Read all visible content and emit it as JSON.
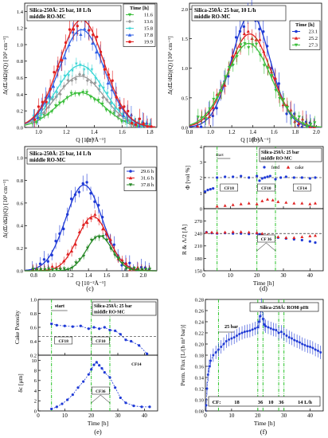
{
  "panel_labels": [
    "(a)",
    "(b)",
    "(c)",
    "(d)",
    "(e)",
    "(f)"
  ],
  "chart_data": [
    {
      "id": "a",
      "type": "scatter",
      "title": "Silica-250Å: 25 bar, 18 L/h",
      "subtitle": "middle RO-MC",
      "xlabel": "Q [10⁻²Å⁻¹]",
      "ylabel": "Δ(dΣ/dΩ)(Q) [10³ cm⁻¹]",
      "xlim": [
        0.9,
        1.85
      ],
      "ylim": [
        0.0,
        1.5
      ],
      "xticks": [
        "1.0",
        "1.2",
        "1.4",
        "1.6",
        "1.8"
      ],
      "yticks": [
        "0.0",
        "0.2",
        "0.4",
        "0.6",
        "0.8",
        "1.0",
        "1.2",
        "1.4"
      ],
      "legend_title": "Time [h]",
      "series": [
        {
          "name": "11.6",
          "color": "#3dbf3d",
          "marker": "triangle-down",
          "peak": 0.42,
          "center": 1.3,
          "width": 0.17
        },
        {
          "name": "13.6",
          "color": "#9a9a9a",
          "marker": "diamond",
          "peak": 0.62,
          "center": 1.3,
          "width": 0.17
        },
        {
          "name": "15.8",
          "color": "#3cd6d6",
          "marker": "star",
          "peak": 0.75,
          "center": 1.3,
          "width": 0.17
        },
        {
          "name": "17.8",
          "color": "#2e5fe6",
          "marker": "triangle-up",
          "peak": 1.18,
          "center": 1.31,
          "width": 0.16
        },
        {
          "name": "19.9",
          "color": "#e02020",
          "marker": "circle",
          "peak": 1.3,
          "center": 1.31,
          "width": 0.16
        }
      ]
    },
    {
      "id": "b",
      "type": "scatter",
      "title": "Silica-250Å: 25 bar, 10 L/h",
      "subtitle": "middle RO-MC",
      "xlabel": "Q [10⁻²Å⁻¹]",
      "ylabel": "Δ(dΣ/dΩ)(Q) [10³ cm⁻¹]",
      "xlim": [
        0.8,
        2.05
      ],
      "ylim": [
        0.0,
        2.1
      ],
      "xticks": [
        "0.8",
        "1.0",
        "1.2",
        "1.4",
        "1.6",
        "1.8",
        "2.0"
      ],
      "yticks": [
        "0.0",
        "0.5",
        "1.0",
        "1.5",
        "2.0"
      ],
      "legend_title": "Time [h]",
      "series": [
        {
          "name": "23.1",
          "color": "#1f3ad6",
          "marker": "circle",
          "peak": 1.92,
          "center": 1.38,
          "width": 0.18
        },
        {
          "name": "25.2",
          "color": "#e02020",
          "marker": "triangle-up",
          "peak": 1.58,
          "center": 1.37,
          "width": 0.2
        },
        {
          "name": "27.3",
          "color": "#3dbf3d",
          "marker": "triangle-down",
          "peak": 1.42,
          "center": 1.36,
          "width": 0.21
        }
      ]
    },
    {
      "id": "c",
      "type": "scatter",
      "title": "Silica-250Å: 25 bar, 14 L/h",
      "subtitle": "middle RO-MC",
      "xlabel": "Q [10⁻²Å⁻¹]",
      "ylabel": "Δ(dΣ/dΩ)(Q) [10³ cm⁻¹]",
      "xlim": [
        0.7,
        2.15
      ],
      "ylim": [
        0.0,
        1.1
      ],
      "xticks": [
        "0.8",
        "1.0",
        "1.2",
        "1.4",
        "1.6",
        "1.8",
        "2.0"
      ],
      "yticks": [
        "0.0",
        "0.2",
        "0.4",
        "0.6",
        "0.8",
        "1.0"
      ],
      "series": [
        {
          "name": "29.6 h",
          "color": "#1f3ad6",
          "marker": "circle",
          "peak": 0.76,
          "center": 1.35,
          "width": 0.2
        },
        {
          "name": "31.6 h",
          "color": "#e02020",
          "marker": "triangle-up",
          "peak": 0.48,
          "center": 1.45,
          "width": 0.17
        },
        {
          "name": "37.8 h",
          "color": "#2a8a2a",
          "marker": "triangle-down",
          "peak": 0.31,
          "center": 1.52,
          "width": 0.14
        }
      ]
    },
    {
      "id": "d",
      "type": "scatter",
      "title": "Silica-250Å: 25 bar",
      "subtitle": "middle RO-MC",
      "xlabel": "Time [h]",
      "xlim": [
        0,
        45
      ],
      "xticks": [
        "0",
        "10",
        "20",
        "30",
        "40"
      ],
      "top": {
        "ylabel": "Φ [vol %]",
        "ylim": [
          0,
          4
        ],
        "yticks": [
          "0",
          "1",
          "2",
          "3",
          "4"
        ],
        "series": [
          {
            "name": "feed",
            "color": "#1f3ad6",
            "marker": "circle",
            "x": [
              0.5,
              1.5,
              2.5,
              3.5,
              5,
              8,
              11,
              14,
              17,
              20,
              21,
              22,
              23,
              24,
              25,
              27,
              29,
              31,
              34,
              37,
              40,
              42
            ],
            "y": [
              1.1,
              1.2,
              1.25,
              1.3,
              2.0,
              2.05,
              2.05,
              2.1,
              2.0,
              2.1,
              1.8,
              1.95,
              2.0,
              2.05,
              2.1,
              1.9,
              2.0,
              2.05,
              2.0,
              2.0,
              1.95,
              2.0
            ]
          },
          {
            "name": "cake",
            "color": "#e02020",
            "marker": "triangle-up",
            "x": [
              5,
              8,
              11,
              14,
              17,
              20,
              22,
              24,
              26,
              28,
              31,
              34,
              37,
              40,
              42
            ],
            "y": [
              0.15,
              0.2,
              0.25,
              0.3,
              0.35,
              0.3,
              0.5,
              0.6,
              0.55,
              0.45,
              0.4,
              0.35,
              0.35,
              0.3,
              0.35
            ]
          }
        ],
        "annotations": [
          "start",
          "CF18",
          "CF10",
          "CF14"
        ]
      },
      "bottom": {
        "ylabel": "R & Λ/2 [Å]",
        "ylim": [
          150,
          300
        ],
        "yticks": [
          "150",
          "180",
          "210",
          "240",
          "270"
        ],
        "series": [
          {
            "name": "R",
            "color": "#1f3ad6",
            "marker": "circle",
            "x": [
              1,
              3,
              5,
              8,
              11,
              14,
              17,
              20,
              21,
              22,
              23,
              24,
              26,
              28,
              31,
              34,
              37,
              40,
              42
            ],
            "y": [
              243,
              241,
              240,
              241,
              240,
              240,
              239,
              240,
              238,
              235,
              234,
              233,
              232,
              230,
              228,
              226,
              224,
              221,
              218
            ]
          },
          {
            "name": "Λ/2",
            "color": "#e02020",
            "marker": "triangle-up",
            "x": [
              1,
              3,
              5,
              8,
              11,
              14,
              17,
              20,
              22,
              24,
              26,
              28,
              31,
              34,
              37,
              40,
              42
            ],
            "y": [
              243,
              243,
              242,
              243,
              244,
              244,
              243,
              242,
              240,
              236,
              234,
              232,
              230,
              230,
              232,
              234,
              235
            ]
          }
        ],
        "annotations": [
          "CF 36"
        ]
      }
    },
    {
      "id": "e",
      "type": "line",
      "title": "Silica-250Å: 25 bar",
      "subtitle": "middle RO-MC",
      "xlabel": "Time [h]",
      "xlim": [
        0,
        45
      ],
      "xticks": [
        "0",
        "10",
        "20",
        "30",
        "40"
      ],
      "top": {
        "ylabel": "Cake Porosity",
        "ylim": [
          0.2,
          1.0
        ],
        "yticks": [
          "0.2",
          "0.4",
          "0.6",
          "0.8",
          "1.0"
        ],
        "x": [
          5,
          7,
          10,
          13,
          16,
          19,
          21,
          23,
          25,
          27,
          29,
          31,
          33,
          35,
          38,
          41
        ],
        "y": [
          0.65,
          0.63,
          0.62,
          0.61,
          0.62,
          0.58,
          0.6,
          0.58,
          0.6,
          0.56,
          0.55,
          0.5,
          0.42,
          0.4,
          0.34,
          0.22
        ],
        "annotations": [
          "start",
          "CF18",
          "CF10",
          "CF14"
        ]
      },
      "bottom": {
        "ylabel": "δc [μm]",
        "ylim": [
          0,
          11
        ],
        "yticks": [
          "0",
          "2",
          "4",
          "6",
          "8",
          "10"
        ],
        "x": [
          5,
          7,
          9,
          11,
          13,
          15,
          17,
          19,
          20,
          21,
          22,
          23,
          24,
          25,
          27,
          29,
          31,
          33,
          36,
          39,
          42
        ],
        "y": [
          0.4,
          0.8,
          1.4,
          2.2,
          3.2,
          4.6,
          5.8,
          7.2,
          8.2,
          9.1,
          9.6,
          9.0,
          8.4,
          7.6,
          6.6,
          4.6,
          2.6,
          1.6,
          1.0,
          0.8,
          0.8
        ],
        "annotations": [
          "CF36"
        ]
      }
    },
    {
      "id": "f",
      "type": "scatter",
      "title": "Silica-250Å: RO98 pHt",
      "xlabel": "Time [h]",
      "ylabel": "Perm. Flux [L/(h m² bar)]",
      "xlim": [
        0,
        45
      ],
      "ylim": [
        0.08,
        0.28
      ],
      "xticks": [
        "0",
        "10",
        "20",
        "30",
        "40"
      ],
      "yticks": [
        "0.08",
        "0.10",
        "0.12",
        "0.14",
        "0.16",
        "0.18",
        "0.20",
        "0.22",
        "0.24",
        "0.26",
        "0.28"
      ],
      "annotations": [
        "25 bar",
        "CF:",
        "18",
        "36",
        "10",
        "36",
        "14 L/h"
      ],
      "x": [
        0.3,
        0.6,
        1,
        1.5,
        2,
        3,
        4,
        5,
        6,
        7,
        8,
        9,
        10,
        11,
        12,
        13,
        14,
        15,
        16,
        17,
        18,
        19,
        20,
        20.5,
        21,
        21.5,
        22,
        22.5,
        23,
        24,
        25,
        26,
        27,
        28,
        29,
        30,
        31,
        32,
        33,
        34,
        35,
        36,
        37,
        38,
        39,
        40,
        41,
        42,
        43,
        44
      ],
      "y": [
        0.09,
        0.12,
        0.145,
        0.16,
        0.17,
        0.18,
        0.185,
        0.19,
        0.195,
        0.2,
        0.205,
        0.208,
        0.21,
        0.212,
        0.215,
        0.218,
        0.22,
        0.222,
        0.223,
        0.224,
        0.226,
        0.228,
        0.23,
        0.24,
        0.25,
        0.27,
        0.245,
        0.235,
        0.232,
        0.23,
        0.228,
        0.226,
        0.225,
        0.22,
        0.222,
        0.218,
        0.215,
        0.212,
        0.21,
        0.207,
        0.205,
        0.203,
        0.2,
        0.198,
        0.196,
        0.195,
        0.193,
        0.19,
        0.188,
        0.185
      ]
    }
  ]
}
